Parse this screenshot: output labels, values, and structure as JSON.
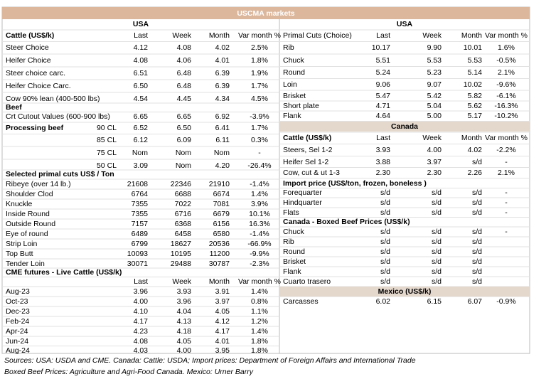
{
  "header": {
    "title": "USCMA markets"
  },
  "left": {
    "rows": [
      [
        "USA"
      ],
      [
        "Cattle (US$/k)",
        null,
        "Last",
        "Week",
        "Month",
        "Var month %"
      ],
      [
        "Steer Choice",
        null,
        "4.12",
        "4.08",
        "4.02",
        "2.5%"
      ],
      [
        "Heifer Choice",
        null,
        "4.08",
        "4.06",
        "4.01",
        "1.8%"
      ],
      [
        "Steer choice carc.",
        null,
        "6.51",
        "6.48",
        "6.39",
        "1.9%"
      ],
      [
        "Heifer Choice Carc.",
        null,
        "6.50",
        "6.48",
        "6.39",
        "1.7%"
      ],
      [
        "Cow 90% lean (400-500 lbs)",
        null,
        "4.54",
        "4.45",
        "4.34",
        "4.5%"
      ],
      [
        "Beef"
      ],
      [
        "Crt Cutout Values (600-900 lbs)",
        null,
        "6.65",
        "6.65",
        "6.92",
        "-3.9%"
      ],
      [
        "Processing beef",
        "90 CL",
        "6.52",
        "6.50",
        "6.41",
        "1.7%"
      ],
      [
        null,
        "85 CL",
        "6.12",
        "6.09",
        "6.11",
        "0.3%"
      ],
      [
        null,
        "75 CL",
        "Nom",
        "Nom",
        "Nom",
        "-"
      ],
      [
        null,
        "50 CL",
        "3.09",
        "Nom",
        "4.20",
        "-26.4%"
      ],
      [
        "Selected primal cuts US$ / Ton"
      ],
      [
        "Ribeye (over 14 lb.)",
        null,
        "21608",
        "22346",
        "21910",
        "-1.4%"
      ],
      [
        "Shoulder Clod",
        null,
        "6764",
        "6688",
        "6674",
        "1.4%"
      ],
      [
        "Knuckle",
        null,
        "7355",
        "7022",
        "7081",
        "3.9%"
      ],
      [
        "Inside Round",
        null,
        "7355",
        "6716",
        "6679",
        "10.1%"
      ],
      [
        "Outside Round",
        null,
        "7157",
        "6368",
        "6156",
        "16.3%"
      ],
      [
        "Eye of round",
        null,
        "6489",
        "6458",
        "6580",
        "-1.4%"
      ],
      [
        "Strip Loin",
        null,
        "6799",
        "18627",
        "20536",
        "-66.9%"
      ],
      [
        "Top Butt",
        null,
        "10093",
        "10195",
        "11200",
        "-9.9%"
      ],
      [
        "Tender Loin",
        null,
        "30071",
        "29488",
        "30787",
        "-2.3%"
      ],
      [
        "CME futures - Live Cattle (US$/k)"
      ],
      [
        null,
        null,
        "Last",
        "Week",
        "Month",
        "Var month %"
      ],
      [
        "Aug-23",
        null,
        "3.96",
        "3.93",
        "3.91",
        "1.4%"
      ],
      [
        "Oct-23",
        null,
        "4.00",
        "3.96",
        "3.97",
        "0.8%"
      ],
      [
        "Dec-23",
        null,
        "4.10",
        "4.04",
        "4.05",
        "1.1%"
      ],
      [
        "Feb-24",
        null,
        "4.17",
        "4.13",
        "4.12",
        "1.2%"
      ],
      [
        "Apr-24",
        null,
        "4.23",
        "4.18",
        "4.17",
        "1.4%"
      ],
      [
        "Jun-24",
        null,
        "4.08",
        "4.05",
        "4.01",
        "1.8%"
      ],
      [
        "Aug-24",
        null,
        "4.03",
        "4.00",
        "3.95",
        "1.8%"
      ]
    ]
  },
  "right": {
    "rows": [
      [
        "USA"
      ],
      [
        "Primal Cuts (Choice)",
        "Last",
        "Week",
        "Month",
        "Var month %"
      ],
      [
        "Rib",
        "10.17",
        "9.90",
        "10.01",
        "1.6%"
      ],
      [
        "Chuck",
        "5.51",
        "5.53",
        "5.53",
        "-0.5%"
      ],
      [
        "Round",
        "5.24",
        "5.23",
        "5.14",
        "2.1%"
      ],
      [
        "Loin",
        "9.06",
        "9.07",
        "10.02",
        "-9.6%"
      ],
      [
        "Brisket",
        "5.47",
        "5.42",
        "5.82",
        "-6.1%"
      ],
      [
        "Short plate",
        "4.71",
        "5.04",
        "5.62",
        "-16.3%"
      ],
      [
        "Flank",
        "4.64",
        "5.00",
        "5.17",
        "-10.2%"
      ],
      [
        "Canada"
      ],
      [
        "Cattle (US$/k)",
        "Last",
        "Week",
        "Month",
        "Var month %"
      ],
      [
        "Steers, Sel 1-2",
        "3.93",
        "4.00",
        "4.02",
        "-2.2%"
      ],
      [
        "Heifer Sel 1-2",
        "3.88",
        "3.97",
        "s/d",
        "-"
      ],
      [
        "Cow, cut & ut 1-3",
        "2.30",
        "2.30",
        "2.26",
        "2.1%"
      ],
      [
        "Import price (US$/ton, frozen, boneless )"
      ],
      [
        "Forequarter",
        "s/d",
        "s/d",
        "s/d",
        "-"
      ],
      [
        "Hindquarter",
        "s/d",
        "s/d",
        "s/d",
        "-"
      ],
      [
        "Flats",
        "s/d",
        "s/d",
        "s/d",
        "-"
      ],
      [
        "Canada - Boxed Beef Prices (US$/k)"
      ],
      [
        "Chuck",
        "s/d",
        "s/d",
        "s/d",
        "-"
      ],
      [
        "Rib",
        "s/d",
        "s/d",
        "s/d",
        null
      ],
      [
        "Round",
        "s/d",
        "s/d",
        "s/d",
        null
      ],
      [
        "Brisket",
        "s/d",
        "s/d",
        "s/d",
        null
      ],
      [
        "Flank",
        "s/d",
        "s/d",
        "s/d",
        null
      ],
      [
        "Cuarto trasero",
        "s/d",
        "s/d",
        "s/d",
        null
      ],
      [
        "Mexico (US$/k)"
      ],
      [
        "Carcasses",
        "6.02",
        "6.15",
        "6.07",
        "-0.9%"
      ]
    ]
  },
  "notes": [
    "Sources: USA: USDA and CME. Canada: Cattle: USDA; Import prices: Department of Foreign Affairs and International Trade",
    "Boxed Beef Prices: Agriculture and Agri-Food Canada. Mexico: Urner Barry"
  ]
}
